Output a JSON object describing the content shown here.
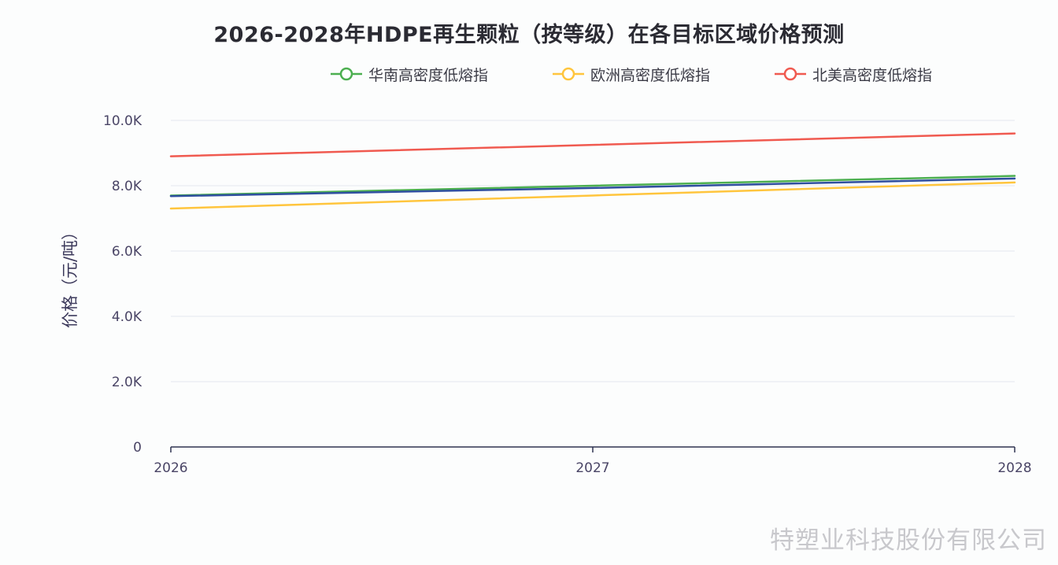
{
  "chart_data": {
    "type": "line",
    "title": "2026-2028年HDPE再生颗粒（按等级）在各目标区域价格预测",
    "xlabel": "",
    "ylabel": "价格（元/吨）",
    "categories": [
      "2026",
      "2027",
      "2028"
    ],
    "ylim": [
      0,
      10000
    ],
    "yticks": [
      0,
      2000,
      4000,
      6000,
      8000,
      10000
    ],
    "ytick_labels": [
      "0",
      "2.0K",
      "4.0K",
      "6.0K",
      "8.0K",
      "10.0K"
    ],
    "grid": true,
    "legend_position": "top",
    "series": [
      {
        "name": "华南高密度低熔指",
        "color": "#4caf50",
        "values": [
          7700,
          8000,
          8300
        ]
      },
      {
        "name": "欧洲高密度低熔指",
        "color": "#ffc53d",
        "values": [
          7300,
          7700,
          8100
        ]
      },
      {
        "name": "北美高密度低熔指",
        "color": "#f05a50",
        "values": [
          8900,
          9250,
          9600
        ]
      },
      {
        "color": "#2f4f9f",
        "values": [
          7680,
          7930,
          8220
        ]
      }
    ]
  },
  "watermark": "特塑业科技股份有限公司"
}
